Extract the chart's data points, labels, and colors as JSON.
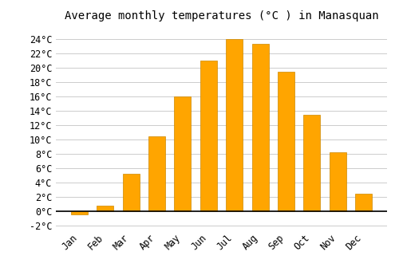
{
  "title": "Average monthly temperatures (°C ) in Manasquan",
  "months": [
    "Jan",
    "Feb",
    "Mar",
    "Apr",
    "May",
    "Jun",
    "Jul",
    "Aug",
    "Sep",
    "Oct",
    "Nov",
    "Dec"
  ],
  "values": [
    -0.5,
    0.7,
    5.2,
    10.4,
    15.9,
    21.0,
    23.9,
    23.3,
    19.4,
    13.4,
    8.2,
    2.4
  ],
  "bar_color": "#FFA500",
  "bar_edge_color": "#CC8800",
  "ylim": [
    -2.5,
    25.5
  ],
  "yticks": [
    -2,
    0,
    2,
    4,
    6,
    8,
    10,
    12,
    14,
    16,
    18,
    20,
    22,
    24
  ],
  "background_color": "#FFFFFF",
  "grid_color": "#CCCCCC",
  "title_fontsize": 10,
  "tick_fontsize": 8.5
}
